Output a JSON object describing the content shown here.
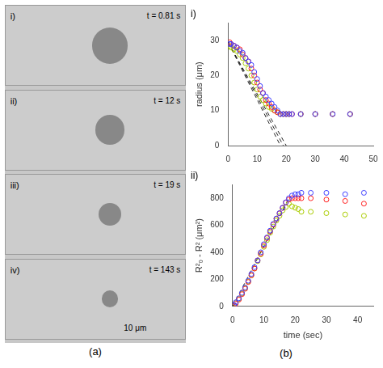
{
  "chart_data": [
    {
      "type": "image",
      "title": "(a)",
      "categories": [
        "i)",
        "ii)",
        "iii)",
        "iv)"
      ],
      "annotations": [
        "t = 0.81 s",
        "t = 12 s",
        "t = 19 s",
        "t = 143 s",
        "10 μm"
      ]
    },
    {
      "type": "scatter",
      "title": "i)",
      "y_label": "radius (μm)",
      "xlim": [
        0,
        50
      ],
      "ylim": [
        0,
        35
      ],
      "xticks": [
        0,
        10,
        20,
        30,
        40,
        50
      ],
      "yticks": [
        0,
        10,
        20,
        30
      ],
      "grid": false,
      "series": [
        {
          "type": "line",
          "line_style": "dashed",
          "color": "#222222",
          "x": [
            0,
            18
          ],
          "values": [
            29.5,
            0
          ]
        },
        {
          "type": "line",
          "line_style": "dashed",
          "color": "#222222",
          "x": [
            0,
            19
          ],
          "values": [
            29.5,
            0
          ]
        },
        {
          "type": "line",
          "line_style": "dashed",
          "color": "#222222",
          "x": [
            0,
            20
          ],
          "values": [
            29.5,
            0
          ]
        },
        {
          "type": "scatter",
          "marker": "circle",
          "color": "#4040ff",
          "x": [
            0.5,
            1,
            2,
            3,
            4,
            5,
            6,
            7,
            8,
            9,
            10,
            11,
            12,
            13,
            14,
            15,
            16,
            17,
            18,
            19,
            20,
            21,
            22,
            25,
            30,
            36,
            42
          ],
          "values": [
            29,
            29,
            28.5,
            28,
            27,
            26.5,
            25,
            24,
            23,
            21,
            19,
            17,
            15,
            14,
            13,
            12,
            11,
            10,
            9,
            9,
            9,
            9,
            9,
            9,
            9,
            9,
            9
          ]
        },
        {
          "type": "scatter",
          "marker": "circle",
          "color": "#ff2020",
          "x": [
            0.5,
            1,
            2,
            3,
            4,
            5,
            6,
            7,
            8,
            9,
            10,
            11,
            12,
            13,
            14,
            15,
            16,
            17,
            18,
            19,
            20,
            21,
            22,
            25,
            30,
            36,
            42
          ],
          "values": [
            29.5,
            29,
            28.5,
            28,
            27.5,
            26,
            25,
            24,
            22,
            20,
            18,
            16,
            15,
            13,
            12,
            11,
            10,
            9.5,
            9,
            9,
            9,
            9,
            9,
            9,
            9,
            9,
            9
          ]
        },
        {
          "type": "scatter",
          "marker": "circle",
          "color": "#aacc00",
          "x": [
            0.5,
            1,
            2,
            3,
            4,
            5,
            6,
            7,
            8,
            9,
            10,
            11,
            12,
            13,
            14,
            15,
            16,
            17,
            18,
            19,
            20,
            21,
            25,
            30,
            36,
            42
          ],
          "values": [
            28.5,
            28,
            27.5,
            27,
            26,
            25,
            23.5,
            22,
            20,
            18,
            16,
            14,
            13,
            12,
            11,
            10.5,
            10,
            9.5,
            9,
            9,
            9,
            9,
            9,
            9,
            9,
            9
          ]
        }
      ]
    },
    {
      "type": "scatter",
      "title": "ii)",
      "x_label": "time (sec)",
      "y_label": "R²₀ - R² (μm²)",
      "xlim": [
        0,
        45
      ],
      "ylim": [
        0,
        900
      ],
      "xticks": [
        0,
        10,
        20,
        30,
        40
      ],
      "yticks": [
        0,
        200,
        400,
        600,
        800
      ],
      "grid": false,
      "annotations": [
        "(b)"
      ],
      "series": [
        {
          "type": "line",
          "line_style": "dashed",
          "color": "#222222",
          "x": [
            0,
            18
          ],
          "values": [
            0,
            800
          ]
        },
        {
          "type": "scatter",
          "marker": "circle",
          "color": "#4040ff",
          "x": [
            0.5,
            1,
            2,
            3,
            4,
            5,
            6,
            7,
            8,
            9,
            10,
            11,
            12,
            13,
            14,
            15,
            16,
            17,
            18,
            19,
            20,
            21,
            22,
            25,
            30,
            36,
            42
          ],
          "values": [
            10,
            30,
            60,
            100,
            140,
            190,
            240,
            290,
            340,
            400,
            460,
            510,
            560,
            610,
            650,
            690,
            730,
            770,
            800,
            820,
            830,
            830,
            840,
            840,
            840,
            830,
            840
          ]
        },
        {
          "type": "scatter",
          "marker": "circle",
          "color": "#ff2020",
          "x": [
            0.5,
            1,
            2,
            3,
            4,
            5,
            6,
            7,
            8,
            9,
            10,
            11,
            12,
            13,
            14,
            15,
            16,
            17,
            18,
            19,
            20,
            21,
            22,
            25,
            30,
            36,
            42
          ],
          "values": [
            5,
            20,
            50,
            90,
            130,
            180,
            230,
            280,
            340,
            390,
            450,
            505,
            555,
            605,
            648,
            688,
            728,
            768,
            790,
            800,
            800,
            800,
            800,
            800,
            790,
            780,
            760
          ]
        },
        {
          "type": "scatter",
          "marker": "circle",
          "color": "#aacc00",
          "x": [
            0.5,
            1,
            2,
            3,
            4,
            5,
            6,
            7,
            8,
            9,
            10,
            11,
            12,
            13,
            14,
            15,
            16,
            17,
            18,
            19,
            20,
            21,
            22,
            25,
            30,
            36,
            42
          ],
          "values": [
            8,
            25,
            55,
            95,
            135,
            185,
            230,
            280,
            335,
            385,
            440,
            490,
            545,
            590,
            635,
            670,
            710,
            735,
            760,
            740,
            730,
            720,
            700,
            700,
            690,
            680,
            670
          ]
        }
      ]
    }
  ]
}
